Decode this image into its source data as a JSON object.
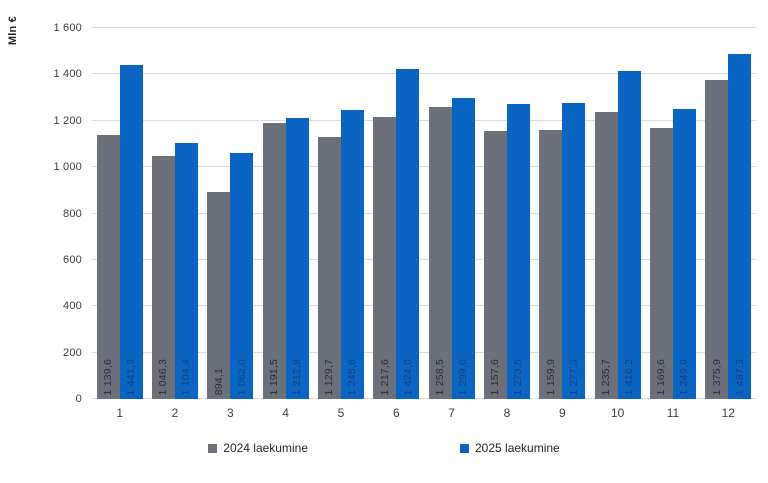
{
  "chart_data": {
    "type": "bar",
    "title": "",
    "xlabel": "",
    "ylabel": "Mln €",
    "ylim": [
      0,
      1600
    ],
    "y_tick_step": 200,
    "y_tick_labels": [
      "0",
      "200",
      "400",
      "600",
      "800",
      "1 000",
      "1 200",
      "1 400",
      "1 600"
    ],
    "grid": true,
    "legend_position": "bottom",
    "categories": [
      "1",
      "2",
      "3",
      "4",
      "5",
      "6",
      "7",
      "8",
      "9",
      "10",
      "11",
      "12"
    ],
    "series": [
      {
        "name": "2024 laekumine",
        "color": "#6b707b",
        "label_color": "#2e2e2e",
        "values": [
          1139.6,
          1046.3,
          894.1,
          1191.5,
          1129.7,
          1217.6,
          1258.5,
          1157.6,
          1159.9,
          1235.7,
          1169.6,
          1375.9
        ],
        "labels": [
          "1 139,6",
          "1 046,3",
          "894,1",
          "1 191,5",
          "1 129,7",
          "1 217,6",
          "1 258,5",
          "1 157,6",
          "1 159,9",
          "1 235,7",
          "1 169,6",
          "1 375,9"
        ]
      },
      {
        "name": "2025 laekumine",
        "color": "#0a65c2",
        "label_color": "#173f77",
        "values": [
          1441.3,
          1104.4,
          1062.0,
          1212.8,
          1245.6,
          1424.0,
          1299.0,
          1273.5,
          1277.3,
          1416.2,
          1249.9,
          1487.3
        ],
        "labels": [
          "1 441,3",
          "1 104,4",
          "1 062,0",
          "1 212,8",
          "1 245,6",
          "1 424,0",
          "1 299,0",
          "1 273,5",
          "1 277,3",
          "1 416,2",
          "1 249,9",
          "1 487,3"
        ]
      }
    ]
  }
}
